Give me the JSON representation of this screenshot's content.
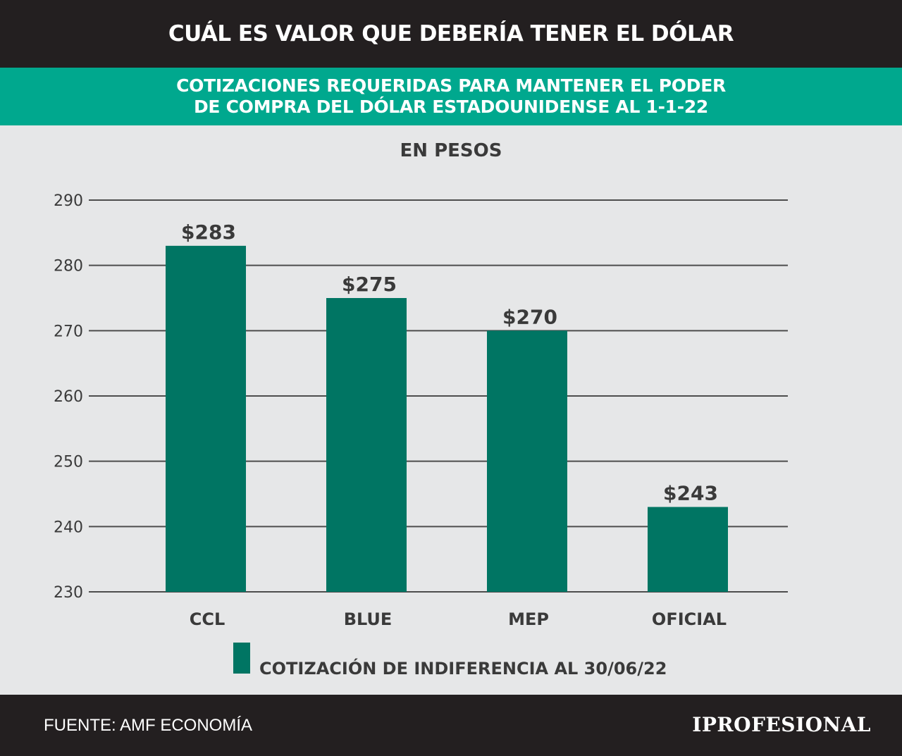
{
  "header": {
    "title": "CUÁL ES VALOR QUE DEBERÍA TENER EL DÓLAR"
  },
  "subheader": {
    "line1": "COTIZACIONES REQUERIDAS PARA MANTENER EL PODER",
    "line2": "DE COMPRA DEL DÓLAR ESTADOUNIDENSE AL 1-1-22"
  },
  "chart_data": {
    "type": "bar",
    "title": "EN PESOS",
    "categories": [
      "CCL",
      "BLUE",
      "MEP",
      "OFICIAL"
    ],
    "values": [
      283,
      275,
      270,
      243
    ],
    "data_labels": [
      "$283",
      "$275",
      "$270",
      "$243"
    ],
    "ylim": [
      230,
      290
    ],
    "yticks": [
      290,
      280,
      270,
      260,
      250,
      240,
      230
    ],
    "grid": true,
    "legend": {
      "label": "COTIZACIÓN DE INDIFERENCIA AL 30/06/22",
      "placement": "bottom-center"
    },
    "bar_color": "#007563"
  },
  "footer": {
    "source": "FUENTE: AMF ECONOMÍA",
    "logo": "IPROFESIONAL"
  }
}
